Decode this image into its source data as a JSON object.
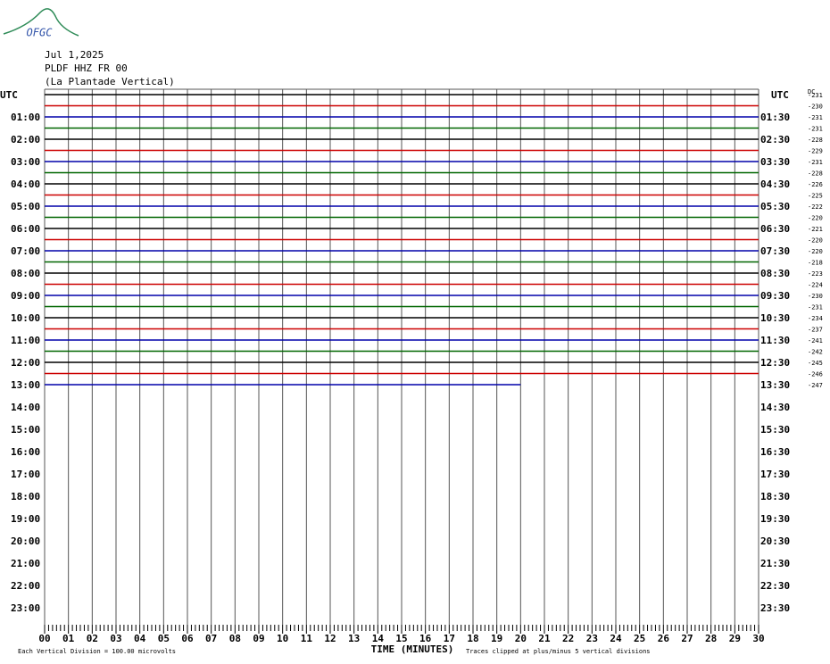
{
  "header": {
    "logo": "OFGC",
    "date": "Jul 1,2025",
    "station": "PLDF HHZ FR 00",
    "location": "(La Plantade Vertical)"
  },
  "chart_data": {
    "type": "helicorder",
    "left_axis_title": "UTC",
    "right_axis_title": "UTC",
    "dc_title": "DC",
    "left_labels": [
      "01:00",
      "02:00",
      "03:00",
      "04:00",
      "05:00",
      "06:00",
      "07:00",
      "08:00",
      "09:00",
      "10:00",
      "11:00",
      "12:00",
      "13:00",
      "14:00",
      "15:00",
      "16:00",
      "17:00",
      "18:00",
      "19:00",
      "20:00",
      "21:00",
      "22:00",
      "23:00"
    ],
    "right_labels": [
      "01:30",
      "02:30",
      "03:30",
      "04:30",
      "05:30",
      "06:30",
      "07:30",
      "08:30",
      "09:30",
      "10:30",
      "11:30",
      "12:30",
      "13:30",
      "14:30",
      "15:30",
      "16:30",
      "17:30",
      "18:30",
      "19:30",
      "20:30",
      "21:30",
      "22:30",
      "23:30"
    ],
    "trace_colors": [
      "#000000",
      "#cc0000",
      "#0000aa",
      "#006600"
    ],
    "dc_offsets": [
      -231,
      -230,
      -231,
      -231,
      -228,
      -229,
      -231,
      -228,
      -226,
      -225,
      -222,
      -220,
      -221,
      -220,
      -220,
      -218,
      -223,
      -224,
      -230,
      -231,
      -234,
      -237,
      -241,
      -242,
      -245,
      -246,
      -247
    ],
    "last_trace_end": 20,
    "xlim": [
      0,
      30
    ],
    "xticks": [
      {
        "value": 0,
        "label": "00"
      },
      {
        "value": 1,
        "label": "01"
      },
      {
        "value": 2,
        "label": "02"
      },
      {
        "value": 3,
        "label": "03"
      },
      {
        "value": 4,
        "label": "04"
      },
      {
        "value": 5,
        "label": "05"
      },
      {
        "value": 6,
        "label": "06"
      },
      {
        "value": 7,
        "label": "07"
      },
      {
        "value": 8,
        "label": "08"
      },
      {
        "value": 9,
        "label": "09"
      },
      10,
      11,
      12,
      13,
      14,
      15,
      16,
      17,
      18,
      19,
      20,
      21,
      22,
      23,
      24,
      25,
      26,
      27,
      28,
      29,
      30
    ],
    "x_title": "TIME (MINUTES)",
    "scale_note": "Each Vertical Division = 100.00 microvolts",
    "clip_note": "Traces clipped at plus/minus 5 vertical divisions"
  }
}
